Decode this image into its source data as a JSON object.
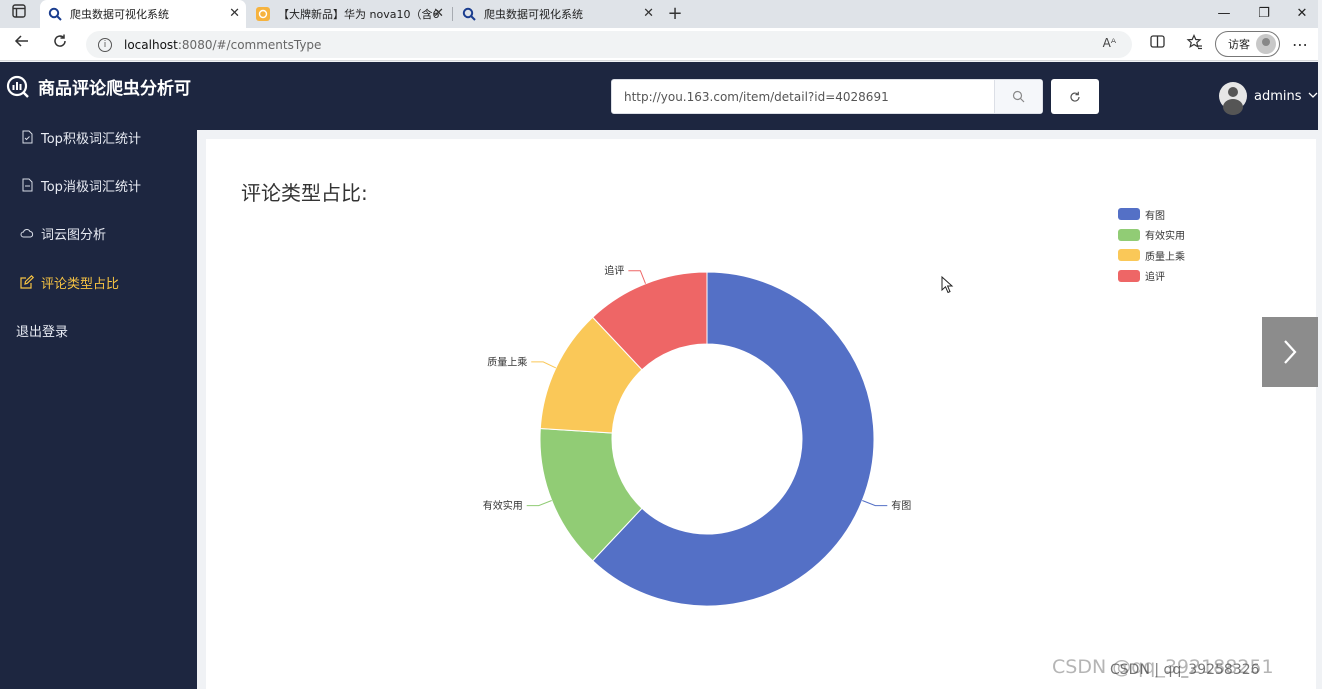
{
  "browser": {
    "tabs": [
      {
        "title": "爬虫数据可视化系统",
        "active": true
      },
      {
        "title": "【大牌新品】华为 nova10（含6",
        "active": false
      },
      {
        "title": "爬虫数据可视化系统",
        "active": false
      }
    ],
    "url_host": "localhost",
    "url_path": ":8080/#/commentsType",
    "read_aloud": "Aᴬ",
    "guest_label": "访客",
    "icons": {
      "back": "arrow-left-icon",
      "reload": "reload-icon",
      "info": "info-icon",
      "split": "split-screen-icon",
      "favorites": "favorites-icon",
      "more": "more-icon"
    }
  },
  "header": {
    "brand": "商品评论爬虫分析可",
    "search_value": "http://you.163.com/item/detail?id=4028691",
    "username": "admins"
  },
  "sidebar": {
    "items": [
      {
        "label": "Top积极词汇统计",
        "icon": "document-icon",
        "active": false
      },
      {
        "label": "Top消极词汇统计",
        "icon": "document-icon",
        "active": false
      },
      {
        "label": "词云图分析",
        "icon": "cloud-icon",
        "active": false
      },
      {
        "label": "评论类型占比",
        "icon": "edit-icon",
        "active": true
      },
      {
        "label": "退出登录",
        "icon": "",
        "active": false
      }
    ]
  },
  "main": {
    "title": "评论类型占比:"
  },
  "chart_data": {
    "type": "pie",
    "donut": true,
    "categories": [
      "有图",
      "有效实用",
      "质量上乘",
      "追评"
    ],
    "values": [
      62,
      14,
      12,
      12
    ],
    "colors": [
      "#5470c6",
      "#91cc75",
      "#fac858",
      "#ee6666"
    ],
    "legend_position": "top-right"
  },
  "watermark": "CSDN @qq_392188251",
  "watermark_overlay": "CSDN | qq_39258326"
}
